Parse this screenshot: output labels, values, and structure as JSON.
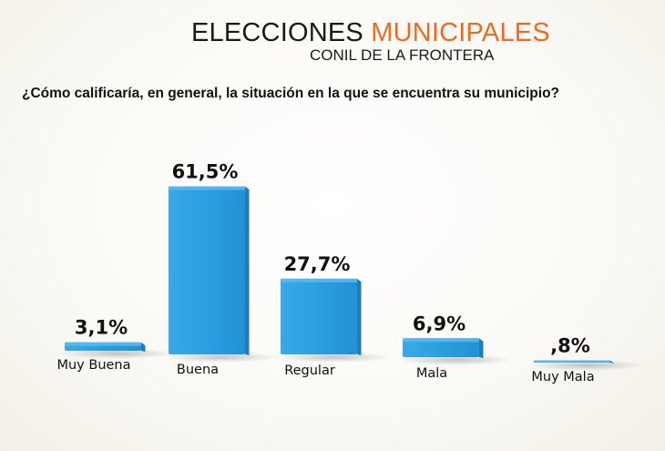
{
  "header": {
    "title_main": "ELECCIONES",
    "title_accent": "MUNICIPALES",
    "subtitle": "CONIL DE LA FRONTERA",
    "question": "¿Cómo calificaría, en general, la situación en la que se encuentra su municipio?"
  },
  "colors": {
    "bar": "#2a9fe0",
    "bar_dark": "#1b7fbd",
    "bar_light": "#55b9ee",
    "title_accent": "#f06a1e"
  },
  "chart_data": {
    "type": "bar",
    "categories": [
      "Muy Buena",
      "Buena",
      "Regular",
      "Mala",
      "Muy Mala"
    ],
    "values": [
      3.1,
      61.5,
      27.7,
      6.9,
      0.8
    ],
    "value_labels": [
      "3,1%",
      "61,5%",
      "27,7%",
      "6,9%",
      ",8%"
    ],
    "title": "ELECCIONES MUNICIPALES",
    "subtitle": "CONIL DE LA FRONTERA",
    "xlabel": "",
    "ylabel": "",
    "ylim": [
      0,
      100
    ],
    "grid": false,
    "legend": "none"
  }
}
